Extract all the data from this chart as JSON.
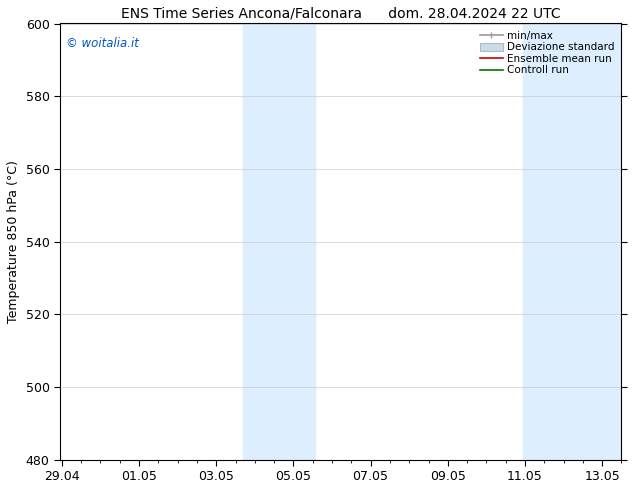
{
  "title_left": "ENS Time Series Ancona/Falconara",
  "title_right": "dom. 28.04.2024 22 UTC",
  "ylabel": "Temperature 850 hPa (°C)",
  "ylim": [
    480,
    600
  ],
  "yticks": [
    480,
    500,
    520,
    540,
    560,
    580,
    600
  ],
  "background_color": "#ffffff",
  "plot_bg_color": "#ffffff",
  "watermark": "© woitalia.it",
  "watermark_color": "#0055cc",
  "xtick_labels": [
    "29.04",
    "01.05",
    "03.05",
    "05.05",
    "07.05",
    "09.05",
    "11.05",
    "13.05"
  ],
  "xtick_positions": [
    0,
    2,
    4,
    6,
    8,
    10,
    12,
    14
  ],
  "xlim": [
    -0.05,
    14.5
  ],
  "font_size": 9,
  "title_font_size": 10,
  "grid_color": "#cccccc",
  "spine_color": "#000000",
  "band1_x0": 4.7,
  "band1_x1": 6.55,
  "band2_x0": 11.95,
  "band2_x1": 14.5,
  "band_color": "#ddeeff",
  "legend_minmax_color": "#999999",
  "legend_dev_facecolor": "#c8dde8",
  "legend_dev_edgecolor": "#aabbcc",
  "legend_ens_color": "#cc0000",
  "legend_ctrl_color": "#007700"
}
